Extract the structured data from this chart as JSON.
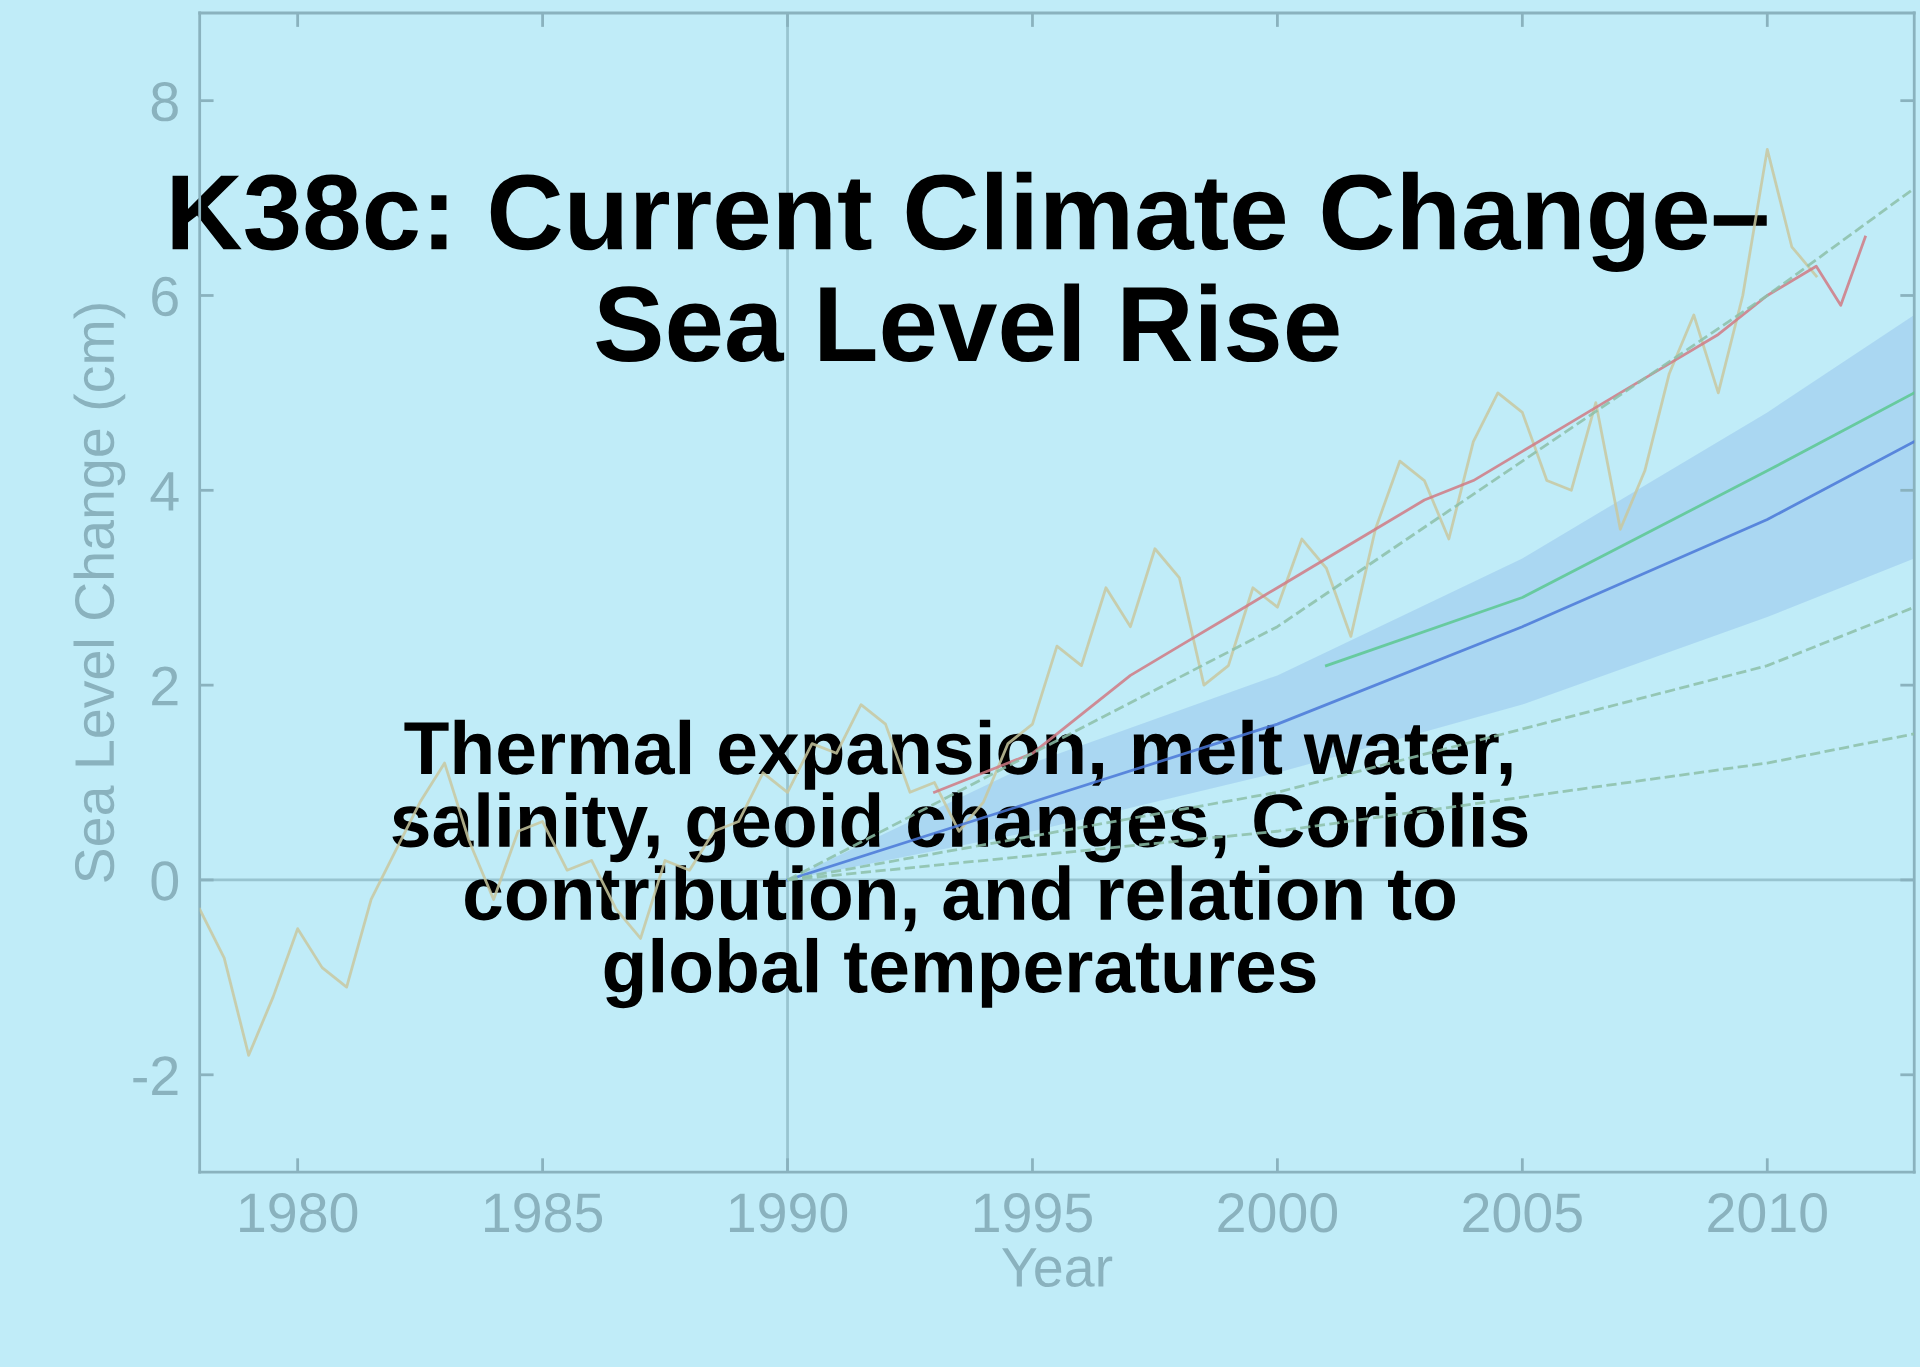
{
  "chart_data": {
    "type": "line",
    "title": "K38c: Current Climate Change–\nSea Level Rise",
    "xlabel": "Year",
    "ylabel": "Sea Level Change (cm)",
    "annotations": [
      "Thermal expansion, melt water,\nsalinity, geoid changes, Coriolis\ncontribution, and relation to\nglobal temperatures"
    ],
    "series": [
      {
        "color": "#c8c8a0",
        "x": [
          1978,
          1978.5,
          1979,
          1979.5,
          1980,
          1980.5,
          1981,
          1981.5,
          1982,
          1982.5,
          1983,
          1983.5,
          1984,
          1984.5,
          1985,
          1985.5,
          1986,
          1986.5,
          1987,
          1987.5,
          1988,
          1988.5,
          1989,
          1989.5,
          1990,
          1990.5,
          1991,
          1991.5,
          1992,
          1992.5,
          1993,
          1993.5,
          1994,
          1994.5,
          1995,
          1995.5,
          1996,
          1996.5,
          1997,
          1997.5,
          1998,
          1998.5,
          1999,
          1999.5,
          2000,
          2000.5,
          2001,
          2001.5,
          2002,
          2002.5,
          2003,
          2003.5,
          2004,
          2004.5,
          2005,
          2005.5,
          2006,
          2006.5,
          2007,
          2007.5,
          2008,
          2008.5,
          2009,
          2009.5,
          2010,
          2010.5,
          2011
        ],
        "values": [
          -0.3,
          -0.8,
          -1.8,
          -1.2,
          -0.5,
          -0.9,
          -1.1,
          -0.2,
          0.3,
          0.8,
          1.2,
          0.4,
          -0.2,
          0.5,
          0.6,
          0.1,
          0.2,
          -0.3,
          -0.6,
          0.2,
          0.1,
          0.5,
          0.6,
          1.1,
          0.9,
          1.4,
          1.3,
          1.8,
          1.6,
          0.9,
          1.0,
          0.5,
          0.8,
          1.4,
          1.6,
          2.4,
          2.2,
          3.0,
          2.6,
          3.4,
          3.1,
          2.0,
          2.2,
          3.0,
          2.8,
          3.5,
          3.2,
          2.5,
          3.6,
          4.3,
          4.1,
          3.5,
          4.5,
          5.0,
          4.8,
          4.1,
          4.0,
          4.9,
          3.6,
          4.2,
          5.2,
          5.8,
          5.0,
          6.0,
          7.5,
          6.5,
          6.2
        ]
      },
      {
        "color": "#d07a84",
        "x": [
          1993,
          1994,
          1995,
          1996,
          1997,
          1998,
          1999,
          2000,
          2001,
          2002,
          2003,
          2004,
          2005,
          2006,
          2007,
          2008,
          2009,
          2010,
          2011,
          2011.5,
          2012
        ],
        "values": [
          0.9,
          1.1,
          1.3,
          1.7,
          2.1,
          2.4,
          2.7,
          3.0,
          3.3,
          3.6,
          3.9,
          4.1,
          4.4,
          4.7,
          5.0,
          5.3,
          5.6,
          6.0,
          6.3,
          5.9,
          6.6
        ]
      },
      {
        "color": "#4a78d8",
        "x": [
          1990,
          1995,
          2000,
          2005,
          2010,
          2013
        ],
        "values": [
          0,
          0.8,
          1.6,
          2.6,
          3.7,
          4.5
        ],
        "lower": [
          0,
          0.5,
          1.1,
          1.8,
          2.7,
          3.3
        ],
        "upper": [
          0,
          1.2,
          2.1,
          3.3,
          4.8,
          5.8
        ]
      },
      {
        "color": "#5cc890",
        "x": [
          2001,
          2005,
          2010,
          2013
        ],
        "values": [
          2.2,
          2.9,
          4.2,
          5.0
        ]
      },
      {
        "color": "#8cc0a8",
        "line_style": "dashed",
        "x": [
          1990,
          2000,
          2010,
          2013
        ],
        "values": [
          0,
          2.6,
          6.0,
          7.1
        ]
      },
      {
        "color": "#8cc0a8",
        "line_style": "dashed",
        "x": [
          1990,
          2000,
          2010,
          2013
        ],
        "values": [
          0,
          0.9,
          2.2,
          2.8
        ]
      },
      {
        "color": "#8cc0a8",
        "line_style": "dashed",
        "x": [
          1990,
          2000,
          2010,
          2013
        ],
        "values": [
          0,
          0.5,
          1.2,
          1.5
        ]
      }
    ],
    "xlim": [
      1978,
      2013
    ],
    "xticks": [
      1980,
      1985,
      1990,
      1995,
      2000,
      2005,
      2010
    ],
    "ylim": [
      -3,
      8.9
    ],
    "yticks": [
      -2,
      0,
      2,
      4,
      6,
      8
    ],
    "ref_lines": [
      {
        "axis": "x",
        "value": 1990,
        "color": "#98c4d0"
      },
      {
        "axis": "y",
        "value": 0,
        "color": "#98c4d0"
      }
    ],
    "grid": false,
    "legend": false,
    "marker": "none",
    "line_style": "solid"
  }
}
